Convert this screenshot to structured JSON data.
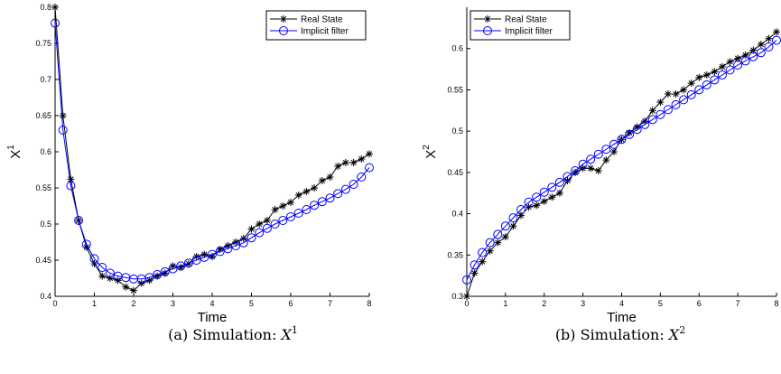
{
  "chart_data": [
    {
      "type": "line",
      "caption_prefix": "(a)  Simulation: ",
      "caption_var": "X",
      "caption_sup": "1",
      "xlabel": "Time",
      "ylabel": "X",
      "ylabel_sup": "1",
      "xlim": [
        0,
        8
      ],
      "ylim": [
        0.4,
        0.8
      ],
      "xticks": [
        "0",
        "1",
        "2",
        "3",
        "4",
        "5",
        "6",
        "7",
        "8"
      ],
      "yticks": [
        "0.4",
        "0.45",
        "0.5",
        "0.55",
        "0.6",
        "0.65",
        "0.7",
        "0.75",
        "0.8"
      ],
      "legend_position": "top-right",
      "series": [
        {
          "name": "Real State",
          "color": "#000000",
          "marker": "asterisk",
          "x": [
            0,
            0.2,
            0.4,
            0.6,
            0.8,
            1.0,
            1.2,
            1.4,
            1.6,
            1.8,
            2.0,
            2.2,
            2.4,
            2.6,
            2.8,
            3.0,
            3.2,
            3.4,
            3.6,
            3.8,
            4.0,
            4.2,
            4.4,
            4.6,
            4.8,
            5.0,
            5.2,
            5.4,
            5.6,
            5.8,
            6.0,
            6.2,
            6.4,
            6.6,
            6.8,
            7.0,
            7.2,
            7.4,
            7.6,
            7.8,
            8.0
          ],
          "values": [
            0.8,
            0.65,
            0.562,
            0.505,
            0.468,
            0.445,
            0.428,
            0.425,
            0.422,
            0.413,
            0.408,
            0.418,
            0.422,
            0.428,
            0.432,
            0.442,
            0.44,
            0.445,
            0.455,
            0.458,
            0.455,
            0.465,
            0.47,
            0.475,
            0.48,
            0.493,
            0.5,
            0.505,
            0.52,
            0.525,
            0.53,
            0.54,
            0.545,
            0.55,
            0.56,
            0.565,
            0.58,
            0.585,
            0.585,
            0.59,
            0.597
          ]
        },
        {
          "name": "Implicit filter",
          "color": "#0000ff",
          "marker": "circle",
          "x": [
            0,
            0.2,
            0.4,
            0.6,
            0.8,
            1.0,
            1.2,
            1.4,
            1.6,
            1.8,
            2.0,
            2.2,
            2.4,
            2.6,
            2.8,
            3.0,
            3.2,
            3.4,
            3.6,
            3.8,
            4.0,
            4.2,
            4.4,
            4.6,
            4.8,
            5.0,
            5.2,
            5.4,
            5.6,
            5.8,
            6.0,
            6.2,
            6.4,
            6.6,
            6.8,
            7.0,
            7.2,
            7.4,
            7.6,
            7.8,
            8.0
          ],
          "values": [
            0.778,
            0.63,
            0.553,
            0.505,
            0.472,
            0.452,
            0.44,
            0.432,
            0.428,
            0.426,
            0.424,
            0.424,
            0.426,
            0.43,
            0.434,
            0.438,
            0.442,
            0.446,
            0.45,
            0.454,
            0.458,
            0.462,
            0.466,
            0.47,
            0.474,
            0.481,
            0.488,
            0.494,
            0.5,
            0.505,
            0.51,
            0.515,
            0.52,
            0.526,
            0.531,
            0.536,
            0.542,
            0.548,
            0.555,
            0.565,
            0.578
          ]
        }
      ]
    },
    {
      "type": "line",
      "caption_prefix": "(b)  Simulation: ",
      "caption_var": "X",
      "caption_sup": "2",
      "xlabel": "Time",
      "ylabel": "X",
      "ylabel_sup": "2",
      "xlim": [
        0,
        8
      ],
      "ylim": [
        0.3,
        0.65
      ],
      "xticks": [
        "0",
        "1",
        "2",
        "3",
        "4",
        "5",
        "6",
        "7",
        "8"
      ],
      "yticks": [
        "0.3",
        "0.35",
        "0.4",
        "0.45",
        "0.5",
        "0.55",
        "0.6"
      ],
      "legend_position": "top-left",
      "series": [
        {
          "name": "Real State",
          "color": "#000000",
          "marker": "asterisk",
          "x": [
            0,
            0.2,
            0.4,
            0.6,
            0.8,
            1.0,
            1.2,
            1.4,
            1.6,
            1.8,
            2.0,
            2.2,
            2.4,
            2.6,
            2.8,
            3.0,
            3.2,
            3.4,
            3.6,
            3.8,
            4.0,
            4.2,
            4.4,
            4.6,
            4.8,
            5.0,
            5.2,
            5.4,
            5.6,
            5.8,
            6.0,
            6.2,
            6.4,
            6.6,
            6.8,
            7.0,
            7.2,
            7.4,
            7.6,
            7.8,
            8.0
          ],
          "values": [
            0.3,
            0.328,
            0.342,
            0.355,
            0.365,
            0.372,
            0.385,
            0.398,
            0.408,
            0.41,
            0.415,
            0.42,
            0.425,
            0.44,
            0.45,
            0.455,
            0.455,
            0.452,
            0.465,
            0.475,
            0.49,
            0.498,
            0.505,
            0.512,
            0.525,
            0.535,
            0.545,
            0.545,
            0.55,
            0.558,
            0.565,
            0.568,
            0.572,
            0.578,
            0.584,
            0.588,
            0.592,
            0.598,
            0.605,
            0.612,
            0.62
          ]
        },
        {
          "name": "Implicit filter",
          "color": "#0000ff",
          "marker": "circle",
          "x": [
            0,
            0.2,
            0.4,
            0.6,
            0.8,
            1.0,
            1.2,
            1.4,
            1.6,
            1.8,
            2.0,
            2.2,
            2.4,
            2.6,
            2.8,
            3.0,
            3.2,
            3.4,
            3.6,
            3.8,
            4.0,
            4.2,
            4.4,
            4.6,
            4.8,
            5.0,
            5.2,
            5.4,
            5.6,
            5.8,
            6.0,
            6.2,
            6.4,
            6.6,
            6.8,
            7.0,
            7.2,
            7.4,
            7.6,
            7.8,
            8.0
          ],
          "values": [
            0.32,
            0.338,
            0.353,
            0.365,
            0.375,
            0.385,
            0.395,
            0.405,
            0.414,
            0.42,
            0.426,
            0.432,
            0.438,
            0.445,
            0.452,
            0.46,
            0.466,
            0.472,
            0.478,
            0.484,
            0.49,
            0.496,
            0.502,
            0.508,
            0.514,
            0.52,
            0.526,
            0.532,
            0.538,
            0.544,
            0.55,
            0.556,
            0.562,
            0.568,
            0.574,
            0.58,
            0.585,
            0.59,
            0.595,
            0.602,
            0.61
          ]
        }
      ]
    }
  ]
}
